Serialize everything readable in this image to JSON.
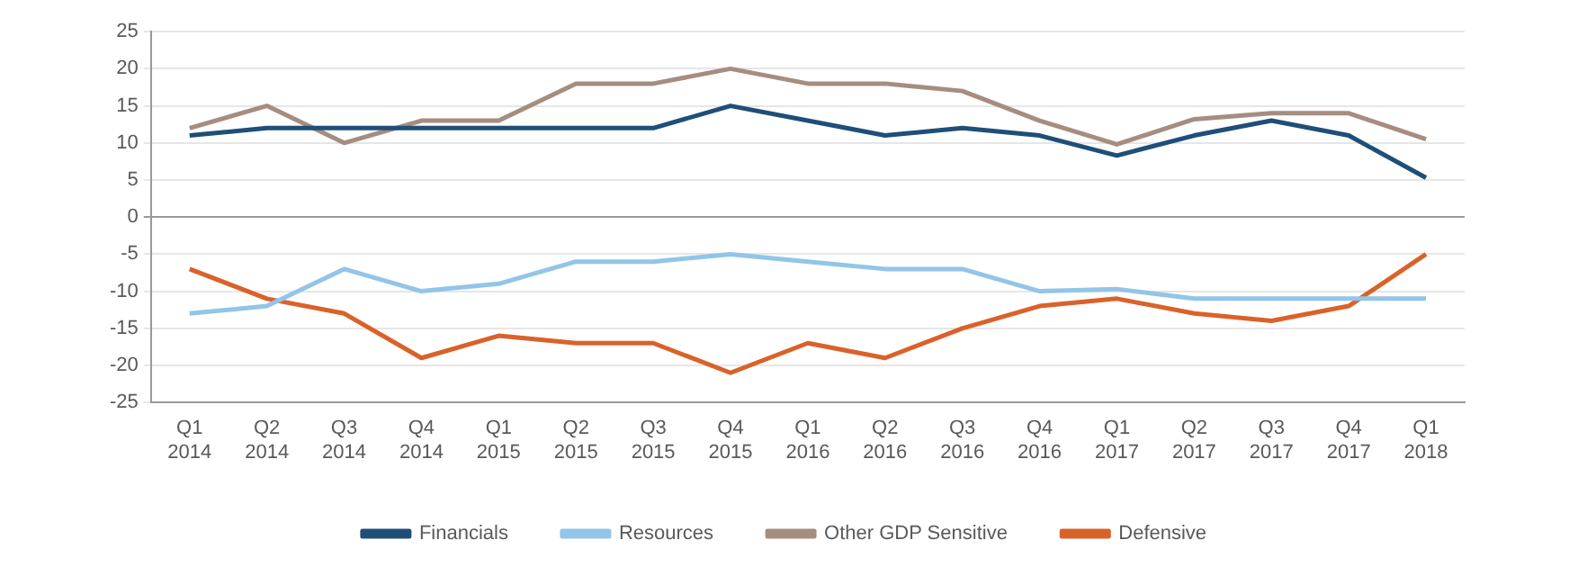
{
  "chart_data": {
    "type": "line",
    "categories": [
      "Q1 2014",
      "Q2 2014",
      "Q3 2014",
      "Q4 2014",
      "Q1 2015",
      "Q2 2015",
      "Q3 2015",
      "Q4 2015",
      "Q1 2016",
      "Q2 2016",
      "Q3 2016",
      "Q4 2016",
      "Q1 2017",
      "Q2 2017",
      "Q3 2017",
      "Q4 2017",
      "Q1 2018"
    ],
    "series": [
      {
        "name": "Financials",
        "color": "#1f4e79",
        "values": [
          11,
          12,
          12,
          12,
          12,
          12,
          12,
          15,
          13,
          11,
          12,
          11,
          8.3,
          11,
          13,
          11,
          5.3
        ]
      },
      {
        "name": "Resources",
        "color": "#92c5e8",
        "values": [
          -13,
          -12,
          -7,
          -10,
          -9,
          -6,
          -6,
          -5,
          -6,
          -7,
          -7,
          -10,
          -9.7,
          -11,
          -11,
          -11,
          -11
        ]
      },
      {
        "name": "Other GDP Sensitive",
        "color": "#a58d7f",
        "values": [
          12,
          15,
          10,
          13,
          13,
          18,
          18,
          20,
          18,
          18,
          17,
          13,
          9.8,
          13.2,
          14,
          14,
          10.5
        ]
      },
      {
        "name": "Defensive",
        "color": "#d9622b",
        "values": [
          -7,
          -11,
          -13,
          -19,
          -16,
          -17,
          -17,
          -21,
          -17,
          -19,
          -15,
          -12,
          -11,
          -13,
          -14,
          -12,
          -5
        ]
      }
    ],
    "ylim": [
      -25,
      25
    ],
    "yticks": [
      -25,
      -20,
      -15,
      -10,
      -5,
      0,
      5,
      10,
      15,
      20,
      25
    ],
    "grid": "y",
    "legend": "bottom",
    "marker": "none",
    "line_style": "solid"
  }
}
